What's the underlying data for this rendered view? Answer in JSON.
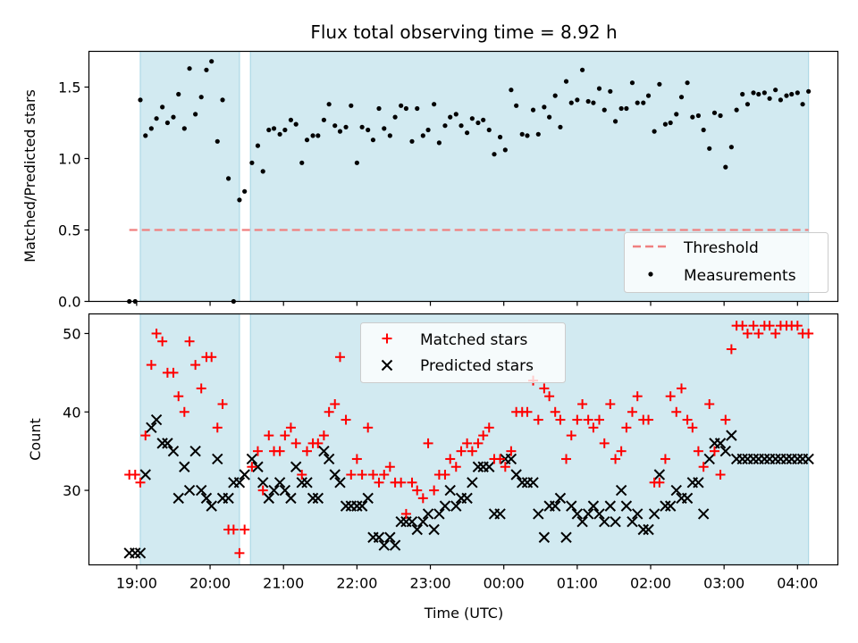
{
  "figure": {
    "title": "Flux total observing time = 8.92 h",
    "xlabel": "Time (UTC)"
  },
  "colors": {
    "shade": "#add8e6",
    "threshold": "#f08080",
    "measurements": "#000000",
    "matched": "#ff0000",
    "predicted": "#000000"
  },
  "chart_data": [
    {
      "type": "scatter",
      "title": "Flux total observing time = 8.92 h",
      "ylabel": "Matched/Predicted stars",
      "xlabel": "",
      "x_unit": "hours (19 = 19:00 UTC, 24 = 00:00, 28 = 04:00)",
      "xlim": [
        18.35,
        28.55
      ],
      "ylim": [
        0.0,
        1.75
      ],
      "yticks": [
        0.0,
        0.5,
        1.0,
        1.5
      ],
      "ytick_labels": [
        "0.0",
        "0.5",
        "1.0",
        "1.5"
      ],
      "grid": false,
      "legend": "lower-right",
      "shaded_intervals": [
        [
          19.05,
          20.4
        ],
        [
          20.55,
          28.15
        ]
      ],
      "threshold": {
        "name": "Threshold",
        "y": 0.5,
        "x_range": [
          18.9,
          28.15
        ],
        "style": "dashed"
      },
      "series": [
        {
          "name": "Measurements",
          "marker": "dot",
          "x": [
            18.9,
            18.98,
            19.05,
            19.12,
            19.2,
            19.27,
            19.35,
            19.42,
            19.5,
            19.57,
            19.65,
            19.72,
            19.8,
            19.88,
            19.95,
            20.02,
            20.1,
            20.17,
            20.25,
            20.32,
            20.4,
            20.47,
            20.57,
            20.65,
            20.72,
            20.8,
            20.87,
            20.95,
            21.02,
            21.1,
            21.17,
            21.25,
            21.32,
            21.4,
            21.47,
            21.55,
            21.62,
            21.7,
            21.77,
            21.85,
            21.92,
            22.0,
            22.07,
            22.15,
            22.22,
            22.3,
            22.37,
            22.45,
            22.52,
            22.6,
            22.67,
            22.75,
            22.82,
            22.9,
            22.97,
            23.05,
            23.12,
            23.2,
            23.27,
            23.35,
            23.42,
            23.5,
            23.57,
            23.65,
            23.72,
            23.8,
            23.87,
            23.95,
            24.02,
            24.1,
            24.17,
            24.25,
            24.32,
            24.4,
            24.47,
            24.55,
            24.62,
            24.7,
            24.77,
            24.85,
            24.92,
            25.0,
            25.07,
            25.15,
            25.22,
            25.3,
            25.37,
            25.45,
            25.52,
            25.6,
            25.67,
            25.75,
            25.82,
            25.9,
            25.97,
            26.05,
            26.12,
            26.2,
            26.27,
            26.35,
            26.42,
            26.5,
            26.57,
            26.65,
            26.72,
            26.8,
            26.87,
            26.95,
            27.02,
            27.1,
            27.17,
            27.25,
            27.32,
            27.4,
            27.47,
            27.55,
            27.62,
            27.7,
            27.77,
            27.85,
            27.92,
            28.0,
            28.07,
            28.15
          ],
          "y": [
            0.0,
            0.0,
            1.41,
            1.16,
            1.21,
            1.28,
            1.36,
            1.25,
            1.29,
            1.45,
            1.21,
            1.63,
            1.31,
            1.43,
            1.62,
            1.68,
            1.12,
            1.41,
            0.86,
            0.0,
            0.71,
            0.77,
            0.97,
            1.09,
            0.91,
            1.2,
            1.21,
            1.17,
            1.2,
            1.27,
            1.24,
            0.97,
            1.13,
            1.16,
            1.16,
            1.27,
            1.38,
            1.23,
            1.19,
            1.22,
            1.37,
            0.97,
            1.22,
            1.2,
            1.13,
            1.35,
            1.21,
            1.16,
            1.29,
            1.37,
            1.35,
            1.12,
            1.35,
            1.16,
            1.2,
            1.38,
            1.11,
            1.23,
            1.29,
            1.31,
            1.23,
            1.18,
            1.28,
            1.25,
            1.27,
            1.2,
            1.03,
            1.15,
            1.06,
            1.48,
            1.37,
            1.17,
            1.16,
            1.34,
            1.17,
            1.36,
            1.29,
            1.44,
            1.22,
            1.54,
            1.39,
            1.41,
            1.62,
            1.4,
            1.39,
            1.49,
            1.34,
            1.47,
            1.26,
            1.35,
            1.35,
            1.53,
            1.39,
            1.39,
            1.44,
            1.19,
            1.52,
            1.24,
            1.25,
            1.31,
            1.43,
            1.53,
            1.29,
            1.3,
            1.2,
            1.07,
            1.32,
            1.3,
            0.94,
            1.08,
            1.34,
            1.45,
            1.38,
            1.46,
            1.45,
            1.46,
            1.42,
            1.48,
            1.41,
            1.44,
            1.45,
            1.46,
            1.38,
            1.47
          ]
        }
      ]
    },
    {
      "type": "scatter",
      "ylabel": "Count",
      "xlabel": "Time (UTC)",
      "x_unit": "hours (19 = 19:00 UTC, 24 = 00:00, 28 = 04:00)",
      "xlim": [
        18.35,
        28.55
      ],
      "ylim": [
        20.5,
        52.5
      ],
      "yticks": [
        30,
        40,
        50
      ],
      "ytick_labels": [
        "30",
        "40",
        "50"
      ],
      "xticks": [
        19,
        20,
        21,
        22,
        23,
        24,
        25,
        26,
        27,
        28
      ],
      "xtick_labels": [
        "19:00",
        "20:00",
        "21:00",
        "22:00",
        "23:00",
        "00:00",
        "01:00",
        "02:00",
        "03:00",
        "04:00"
      ],
      "grid": false,
      "legend": "top-center",
      "shaded_intervals": [
        [
          19.05,
          20.4
        ],
        [
          20.55,
          28.15
        ]
      ],
      "series": [
        {
          "name": "Matched stars",
          "marker": "plus",
          "x": [
            18.9,
            18.98,
            19.05,
            19.12,
            19.2,
            19.27,
            19.35,
            19.42,
            19.5,
            19.57,
            19.65,
            19.72,
            19.8,
            19.88,
            19.95,
            20.02,
            20.1,
            20.17,
            20.25,
            20.32,
            20.4,
            20.47,
            20.57,
            20.65,
            20.72,
            20.8,
            20.87,
            20.95,
            21.02,
            21.1,
            21.17,
            21.25,
            21.32,
            21.4,
            21.47,
            21.55,
            21.62,
            21.7,
            21.77,
            21.85,
            21.92,
            22.0,
            22.07,
            22.15,
            22.22,
            22.3,
            22.37,
            22.45,
            22.52,
            22.6,
            22.67,
            22.75,
            22.82,
            22.9,
            22.97,
            23.05,
            23.12,
            23.2,
            23.27,
            23.35,
            23.42,
            23.5,
            23.57,
            23.65,
            23.72,
            23.8,
            23.87,
            23.95,
            24.02,
            24.1,
            24.17,
            24.25,
            24.32,
            24.4,
            24.47,
            24.55,
            24.62,
            24.7,
            24.77,
            24.85,
            24.92,
            25.0,
            25.07,
            25.15,
            25.22,
            25.3,
            25.37,
            25.45,
            25.52,
            25.6,
            25.67,
            25.75,
            25.82,
            25.9,
            25.97,
            26.05,
            26.12,
            26.2,
            26.27,
            26.35,
            26.42,
            26.5,
            26.57,
            26.65,
            26.72,
            26.8,
            26.87,
            26.95,
            27.02,
            27.1,
            27.17,
            27.25,
            27.32,
            27.4,
            27.47,
            27.55,
            27.62,
            27.7,
            27.77,
            27.85,
            27.92,
            28.0,
            28.07,
            28.15
          ],
          "y": [
            32,
            32,
            31,
            37,
            46,
            50,
            49,
            45,
            45,
            42,
            40,
            49,
            46,
            43,
            47,
            47,
            38,
            41,
            25,
            25,
            22,
            25,
            33,
            35,
            30,
            37,
            35,
            35,
            37,
            38,
            36,
            32,
            35,
            36,
            36,
            37,
            40,
            41,
            47,
            39,
            32,
            34,
            32,
            38,
            32,
            31,
            32,
            33,
            31,
            31,
            27,
            31,
            30,
            29,
            36,
            30,
            32,
            32,
            34,
            33,
            35,
            36,
            35,
            36,
            37,
            38,
            34,
            34,
            33,
            35,
            40,
            40,
            40,
            44,
            39,
            43,
            42,
            40,
            39,
            34,
            37,
            39,
            41,
            39,
            38,
            39,
            36,
            41,
            34,
            35,
            38,
            40,
            42,
            39,
            39,
            31,
            31,
            34,
            42,
            40,
            43,
            39,
            38,
            35,
            33,
            41,
            35,
            32,
            39,
            48,
            51,
            51,
            50,
            51,
            50,
            51,
            51,
            50,
            51,
            51,
            51,
            51,
            50,
            50
          ]
        },
        {
          "name": "Predicted stars",
          "marker": "x",
          "x": [
            18.9,
            18.98,
            19.05,
            19.12,
            19.2,
            19.27,
            19.35,
            19.42,
            19.5,
            19.57,
            19.65,
            19.72,
            19.8,
            19.88,
            19.95,
            20.02,
            20.1,
            20.17,
            20.25,
            20.32,
            20.4,
            20.47,
            20.57,
            20.65,
            20.72,
            20.8,
            20.87,
            20.95,
            21.02,
            21.1,
            21.17,
            21.25,
            21.32,
            21.4,
            21.47,
            21.55,
            21.62,
            21.7,
            21.77,
            21.85,
            21.92,
            22.0,
            22.07,
            22.15,
            22.22,
            22.3,
            22.37,
            22.45,
            22.52,
            22.6,
            22.67,
            22.75,
            22.82,
            22.9,
            22.97,
            23.05,
            23.12,
            23.2,
            23.27,
            23.35,
            23.42,
            23.5,
            23.57,
            23.65,
            23.72,
            23.8,
            23.87,
            23.95,
            24.02,
            24.1,
            24.17,
            24.25,
            24.32,
            24.4,
            24.47,
            24.55,
            24.62,
            24.7,
            24.77,
            24.85,
            24.92,
            25.0,
            25.07,
            25.15,
            25.22,
            25.3,
            25.37,
            25.45,
            25.52,
            25.6,
            25.67,
            25.75,
            25.82,
            25.9,
            25.97,
            26.05,
            26.12,
            26.2,
            26.27,
            26.35,
            26.42,
            26.5,
            26.57,
            26.65,
            26.72,
            26.8,
            26.87,
            26.95,
            27.02,
            27.1,
            27.17,
            27.25,
            27.32,
            27.4,
            27.47,
            27.55,
            27.62,
            27.7,
            27.77,
            27.85,
            27.92,
            28.0,
            28.07,
            28.15
          ],
          "y": [
            22,
            22,
            22,
            32,
            38,
            39,
            36,
            36,
            35,
            29,
            33,
            30,
            35,
            30,
            29,
            28,
            34,
            29,
            29,
            31,
            31,
            32,
            34,
            33,
            31,
            29,
            30,
            31,
            30,
            29,
            33,
            31,
            31,
            29,
            29,
            35,
            34,
            32,
            31,
            28,
            28,
            28,
            28,
            29,
            24,
            24,
            23,
            24,
            23,
            26,
            26,
            26,
            25,
            26,
            27,
            25,
            27,
            28,
            30,
            28,
            29,
            29,
            31,
            33,
            33,
            33,
            27,
            27,
            34,
            34,
            32,
            31,
            31,
            31,
            27,
            24,
            28,
            28,
            29,
            24,
            28,
            27,
            26,
            27,
            28,
            27,
            26,
            28,
            26,
            30,
            28,
            26,
            27,
            25,
            25,
            27,
            32,
            28,
            28,
            30,
            29,
            29,
            31,
            31,
            27,
            34,
            36,
            36,
            35,
            37,
            34,
            34,
            34,
            34,
            34,
            34,
            34,
            34,
            34,
            34,
            34,
            34,
            34,
            34
          ]
        }
      ]
    }
  ]
}
